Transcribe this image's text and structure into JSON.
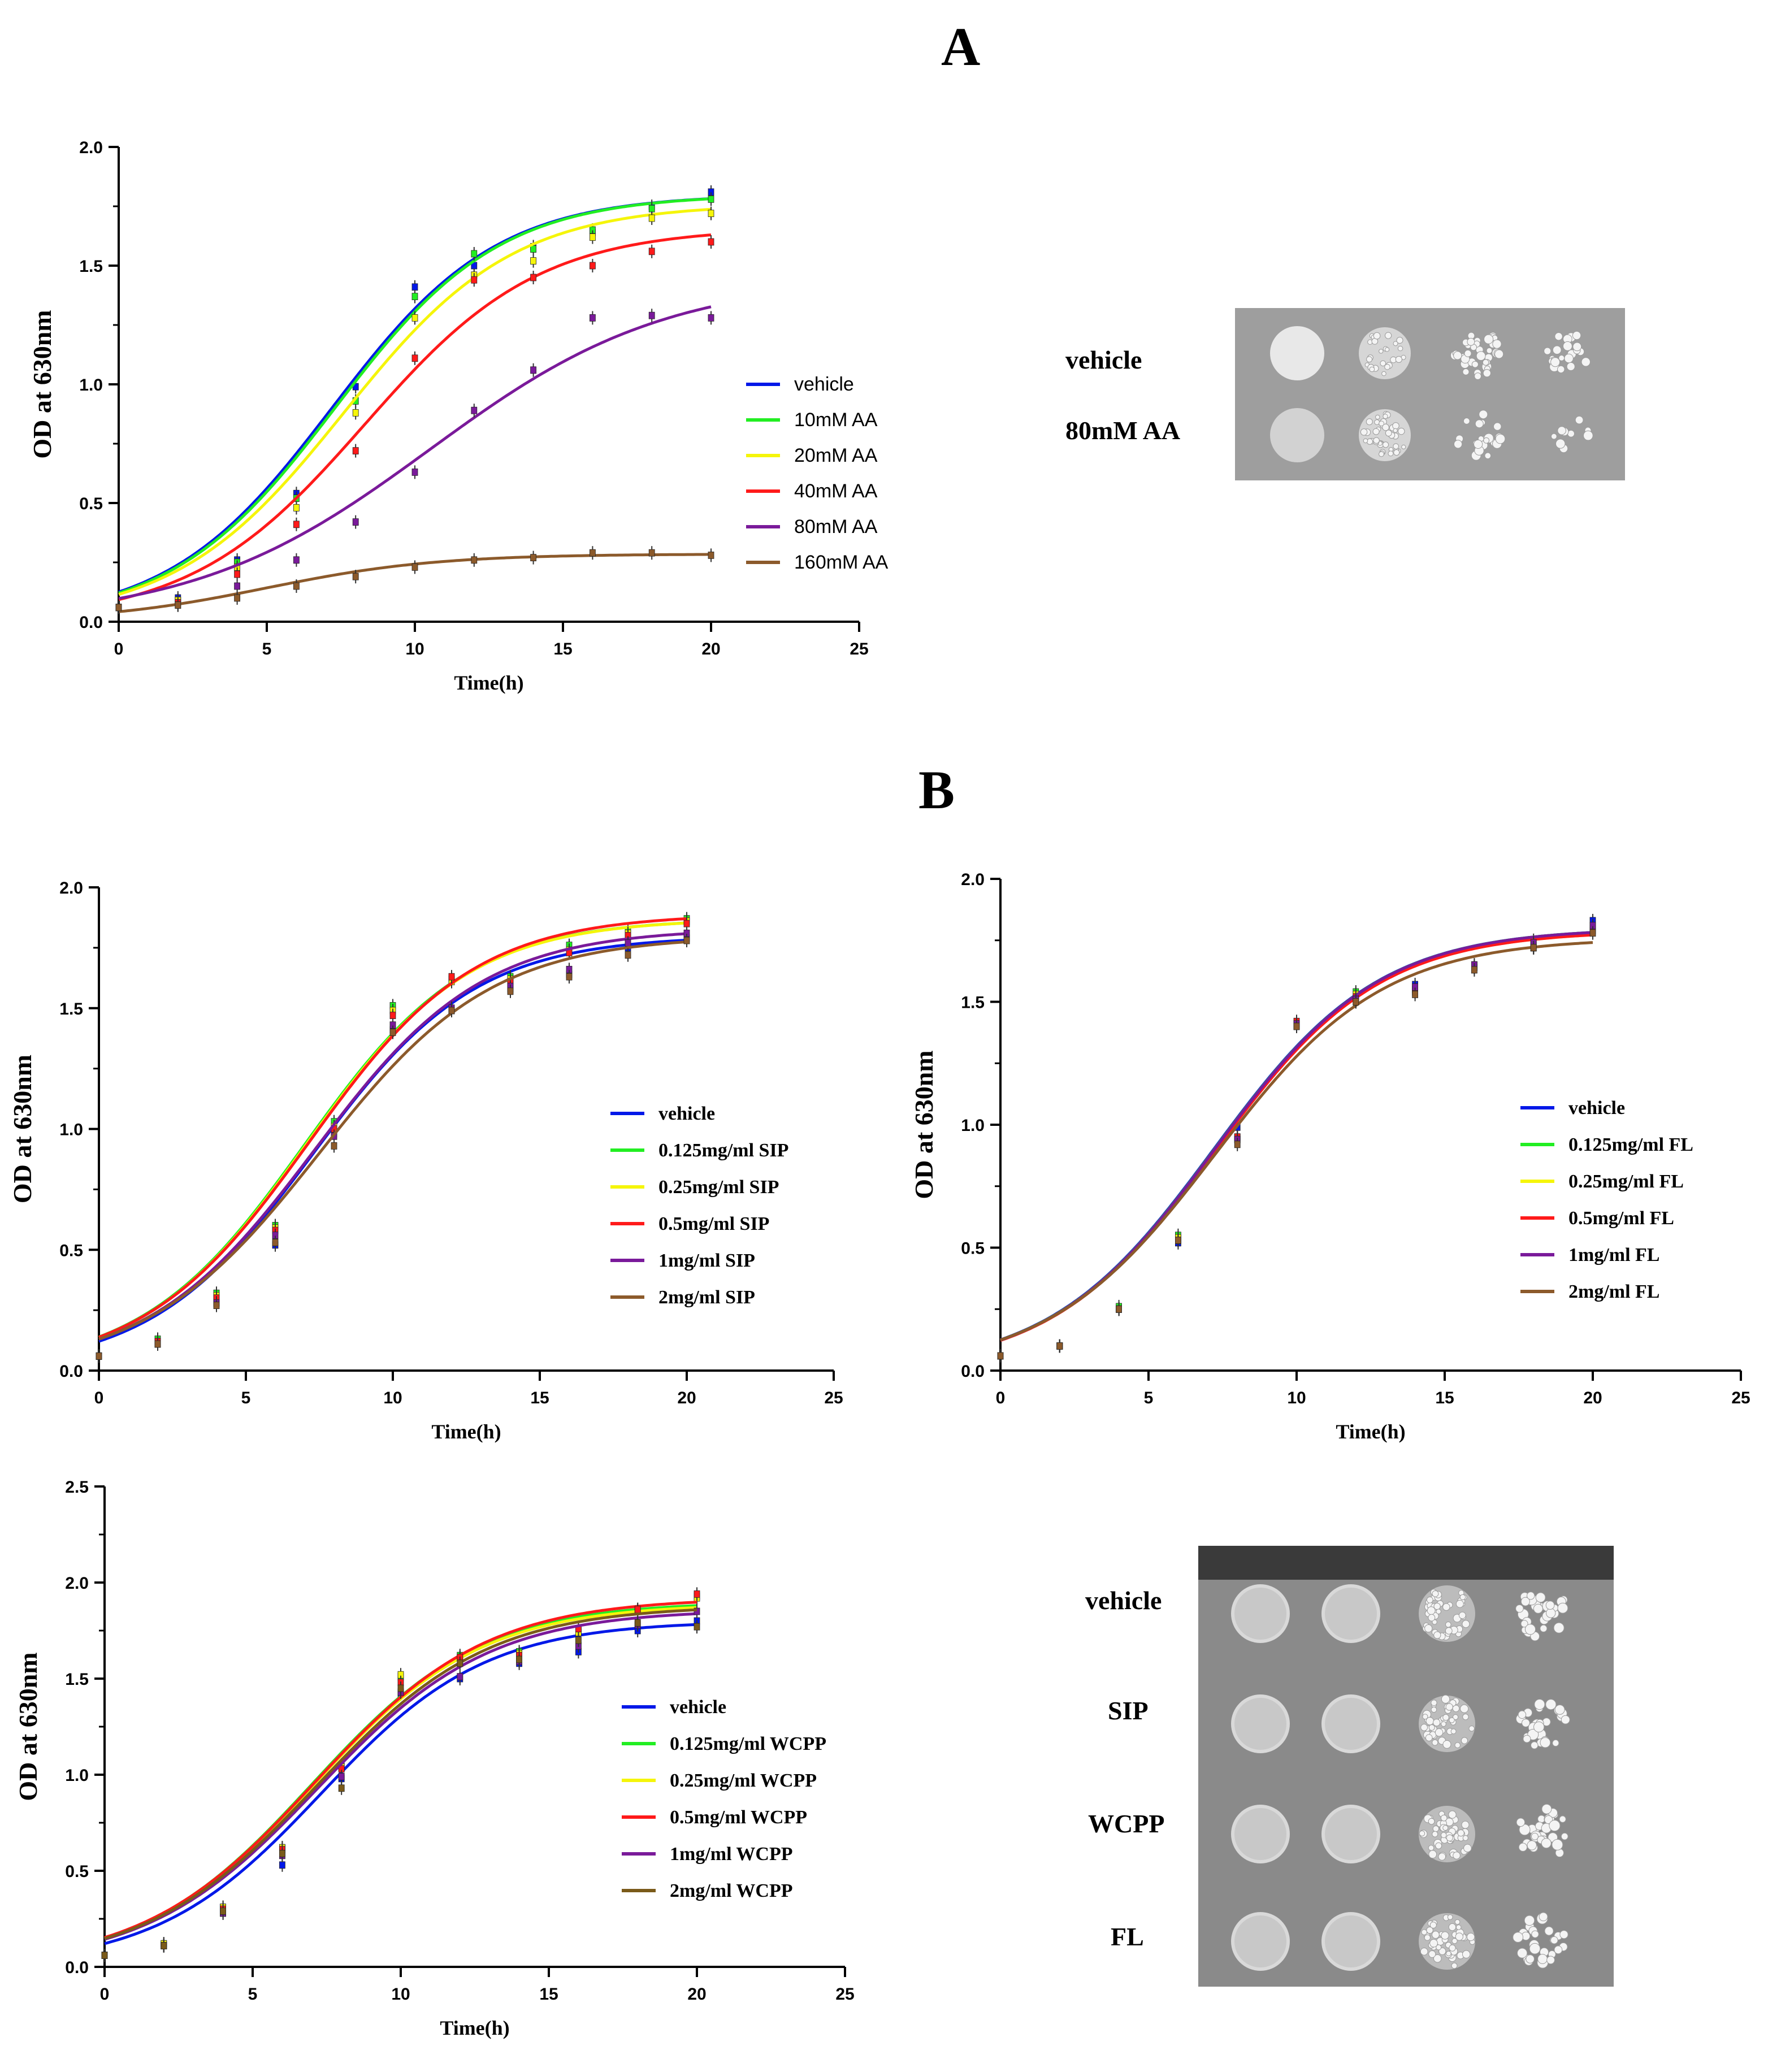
{
  "figure": {
    "panel_a_letter": "A",
    "panel_b_letter": "B"
  },
  "spot_assay_a": {
    "rows": [
      "vehicle",
      "80mM AA"
    ]
  },
  "spot_assay_b": {
    "rows": [
      "vehicle",
      "SIP",
      "WCPP",
      "FL"
    ]
  },
  "chart_data": [
    {
      "id": "A",
      "type": "line",
      "xlabel": "Time(h)",
      "ylabel": "OD at 630nm",
      "xlim": [
        0,
        25
      ],
      "ylim": [
        0,
        2.0
      ],
      "xticks": [
        0,
        5,
        10,
        15,
        20,
        25
      ],
      "yticks": [
        0.0,
        0.5,
        1.0,
        1.5,
        2.0
      ],
      "legend_font": "sans",
      "legend_position": "right",
      "x": [
        0,
        2,
        4,
        6,
        8,
        10,
        12,
        14,
        16,
        18,
        20
      ],
      "series": [
        {
          "name": "vehicle",
          "color": "#0018e8",
          "fit": {
            "K": 1.8,
            "r": 0.36,
            "t0": 7.2
          },
          "points": [
            0.06,
            0.1,
            0.26,
            0.54,
            0.99,
            1.41,
            1.5,
            1.58,
            1.64,
            1.75,
            1.81
          ]
        },
        {
          "name": "10mM AA",
          "color": "#22ee22",
          "fit": {
            "K": 1.8,
            "r": 0.36,
            "t0": 7.3
          },
          "points": [
            0.06,
            0.09,
            0.25,
            0.52,
            0.93,
            1.37,
            1.55,
            1.57,
            1.65,
            1.74,
            1.78
          ]
        },
        {
          "name": "20mM  AA",
          "color": "#f5f50a",
          "fit": {
            "K": 1.76,
            "r": 0.35,
            "t0": 7.6
          },
          "points": [
            0.06,
            0.09,
            0.23,
            0.48,
            0.88,
            1.28,
            1.46,
            1.52,
            1.62,
            1.7,
            1.72
          ]
        },
        {
          "name": "40mM AA",
          "color": "#ff1a1a",
          "fit": {
            "K": 1.66,
            "r": 0.34,
            "t0": 8.3
          },
          "points": [
            0.06,
            0.08,
            0.2,
            0.41,
            0.72,
            1.11,
            1.44,
            1.45,
            1.5,
            1.56,
            1.6
          ]
        },
        {
          "name": "80mM AA",
          "color": "#7a1a9a",
          "fit": {
            "K": 1.45,
            "r": 0.25,
            "t0": 10.5
          },
          "points": [
            0.06,
            0.07,
            0.15,
            0.26,
            0.42,
            0.63,
            0.89,
            1.06,
            1.28,
            1.29,
            1.28
          ]
        },
        {
          "name": "160mM AA",
          "color": "#8c5a2b",
          "fit": {
            "K": 0.285,
            "r": 0.35,
            "t0": 5.0
          },
          "points": [
            0.06,
            0.07,
            0.1,
            0.15,
            0.19,
            0.23,
            0.26,
            0.27,
            0.29,
            0.29,
            0.28
          ]
        }
      ]
    },
    {
      "id": "B-SIP",
      "type": "line",
      "xlabel": "Time(h)",
      "ylabel": "OD at 630nm",
      "xlim": [
        0,
        25
      ],
      "ylim": [
        0,
        2.0
      ],
      "xticks": [
        0,
        5,
        10,
        15,
        20,
        25
      ],
      "yticks": [
        0.0,
        0.5,
        1.0,
        1.5,
        2.0
      ],
      "legend_position": "right",
      "x": [
        0,
        2,
        4,
        6,
        8,
        10,
        12,
        14,
        16,
        18,
        20
      ],
      "series": [
        {
          "name": "vehicle",
          "color": "#0018e8",
          "fit": {
            "K": 1.8,
            "r": 0.36,
            "t0": 7.3
          },
          "points": [
            0.06,
            0.11,
            0.28,
            0.52,
            0.98,
            1.41,
            1.49,
            1.58,
            1.64,
            1.75,
            1.79
          ]
        },
        {
          "name": "0.125mg/ml SIP",
          "color": "#22ee22",
          "fit": {
            "K": 1.87,
            "r": 0.36,
            "t0": 7.0
          },
          "points": [
            0.06,
            0.13,
            0.32,
            0.6,
            1.03,
            1.51,
            1.62,
            1.63,
            1.76,
            1.82,
            1.87
          ]
        },
        {
          "name": "0.25mg/ml SIP",
          "color": "#f5f50a",
          "fit": {
            "K": 1.87,
            "r": 0.36,
            "t0": 7.05
          },
          "points": [
            0.06,
            0.12,
            0.31,
            0.59,
            1.01,
            1.49,
            1.61,
            1.62,
            1.74,
            1.81,
            1.86
          ]
        },
        {
          "name": "0.5mg/ml SIP",
          "color": "#ff1a1a",
          "fit": {
            "K": 1.89,
            "r": 0.355,
            "t0": 7.15
          },
          "points": [
            0.06,
            0.12,
            0.3,
            0.58,
            1.0,
            1.47,
            1.63,
            1.61,
            1.73,
            1.8,
            1.85
          ]
        },
        {
          "name": "1mg/ml SIP",
          "color": "#7a1a9a",
          "fit": {
            "K": 1.83,
            "r": 0.35,
            "t0": 7.35
          },
          "points": [
            0.06,
            0.11,
            0.28,
            0.56,
            0.97,
            1.43,
            1.5,
            1.59,
            1.66,
            1.77,
            1.81
          ]
        },
        {
          "name": "2mg/ml SIP",
          "color": "#8c5a2b",
          "fit": {
            "K": 1.8,
            "r": 0.34,
            "t0": 7.5
          },
          "points": [
            0.06,
            0.11,
            0.27,
            0.53,
            0.93,
            1.4,
            1.49,
            1.57,
            1.63,
            1.72,
            1.78
          ]
        }
      ]
    },
    {
      "id": "B-FL",
      "type": "line",
      "xlabel": "Time(h)",
      "ylabel": "OD at 630nm",
      "xlim": [
        0,
        25
      ],
      "ylim": [
        0,
        2.0
      ],
      "xticks": [
        0,
        5,
        10,
        15,
        20,
        25
      ],
      "yticks": [
        0.0,
        0.5,
        1.0,
        1.5,
        2.0
      ],
      "legend_position": "right",
      "x": [
        0,
        2,
        4,
        6,
        8,
        10,
        12,
        14,
        16,
        18,
        20
      ],
      "series": [
        {
          "name": "vehicle",
          "color": "#0018e8",
          "fit": {
            "K": 1.8,
            "r": 0.36,
            "t0": 7.2
          },
          "points": [
            0.06,
            0.1,
            0.25,
            0.52,
            0.99,
            1.41,
            1.5,
            1.57,
            1.64,
            1.75,
            1.83
          ]
        },
        {
          "name": "0.125mg/ml FL",
          "color": "#22ee22",
          "fit": {
            "K": 1.8,
            "r": 0.36,
            "t0": 7.22
          },
          "points": [
            0.06,
            0.1,
            0.26,
            0.55,
            0.95,
            1.4,
            1.54,
            1.55,
            1.65,
            1.73,
            1.8
          ]
        },
        {
          "name": "0.25mg/ml FL",
          "color": "#f5f50a",
          "fit": {
            "K": 1.79,
            "r": 0.36,
            "t0": 7.24
          },
          "points": [
            0.06,
            0.1,
            0.25,
            0.54,
            0.94,
            1.41,
            1.53,
            1.55,
            1.64,
            1.72,
            1.79
          ]
        },
        {
          "name": "0.5mg/ml FL",
          "color": "#ff1a1a",
          "fit": {
            "K": 1.79,
            "r": 0.36,
            "t0": 7.25
          },
          "points": [
            0.06,
            0.1,
            0.25,
            0.53,
            0.95,
            1.42,
            1.52,
            1.54,
            1.64,
            1.72,
            1.79
          ]
        },
        {
          "name": "1mg/ml FL",
          "color": "#7a1a9a",
          "fit": {
            "K": 1.8,
            "r": 0.36,
            "t0": 7.23
          },
          "points": [
            0.06,
            0.1,
            0.25,
            0.53,
            0.94,
            1.41,
            1.51,
            1.56,
            1.65,
            1.74,
            1.81
          ]
        },
        {
          "name": "2mg/ml FL",
          "color": "#8c5a2b",
          "fit": {
            "K": 1.76,
            "r": 0.355,
            "t0": 7.25
          },
          "points": [
            0.06,
            0.1,
            0.25,
            0.53,
            0.92,
            1.4,
            1.5,
            1.53,
            1.63,
            1.72,
            1.78
          ]
        }
      ]
    },
    {
      "id": "B-WCPP",
      "type": "line",
      "xlabel": "Time(h)",
      "ylabel": "OD at 630nm",
      "xlim": [
        0,
        25
      ],
      "ylim": [
        0,
        2.5
      ],
      "xticks": [
        0,
        5,
        10,
        15,
        20,
        25
      ],
      "yticks": [
        0.0,
        0.5,
        1.0,
        1.5,
        2.0,
        2.5
      ],
      "legend_position": "right",
      "x": [
        0,
        2,
        4,
        6,
        8,
        10,
        12,
        14,
        16,
        18,
        20
      ],
      "series": [
        {
          "name": "vehicle",
          "color": "#0018e8",
          "fit": {
            "K": 1.8,
            "r": 0.36,
            "t0": 7.3
          },
          "points": [
            0.06,
            0.11,
            0.28,
            0.53,
            0.98,
            1.42,
            1.5,
            1.58,
            1.64,
            1.75,
            1.8
          ]
        },
        {
          "name": "0.125mg/ml WCPP",
          "color": "#22ee22",
          "fit": {
            "K": 1.9,
            "r": 0.35,
            "t0": 7.0
          },
          "points": [
            0.06,
            0.12,
            0.31,
            0.62,
            1.05,
            1.51,
            1.62,
            1.64,
            1.75,
            1.86,
            1.93
          ]
        },
        {
          "name": "0.25mg/ml WCPP",
          "color": "#f5f50a",
          "fit": {
            "K": 1.89,
            "r": 0.35,
            "t0": 7.05
          },
          "points": [
            0.06,
            0.12,
            0.31,
            0.62,
            1.04,
            1.52,
            1.61,
            1.63,
            1.74,
            1.85,
            1.92
          ]
        },
        {
          "name": "0.5mg/ml WCPP",
          "color": "#ff1a1a",
          "fit": {
            "K": 1.92,
            "r": 0.345,
            "t0": 7.1
          },
          "points": [
            0.06,
            0.11,
            0.3,
            0.61,
            1.03,
            1.48,
            1.61,
            1.62,
            1.76,
            1.86,
            1.94
          ]
        },
        {
          "name": "1mg/ml WCPP",
          "color": "#7a1a9a",
          "fit": {
            "K": 1.86,
            "r": 0.345,
            "t0": 7.2
          },
          "points": [
            0.06,
            0.11,
            0.28,
            0.58,
            0.99,
            1.43,
            1.51,
            1.59,
            1.67,
            1.78,
            1.85
          ]
        },
        {
          "name": "2mg/ml WCPP",
          "color": "#7a5a1a",
          "fit": {
            "K": 1.88,
            "r": 0.345,
            "t0": 7.15
          },
          "points": [
            0.06,
            0.11,
            0.29,
            0.59,
            0.93,
            1.45,
            1.58,
            1.6,
            1.7,
            1.79,
            1.77
          ]
        }
      ]
    }
  ]
}
